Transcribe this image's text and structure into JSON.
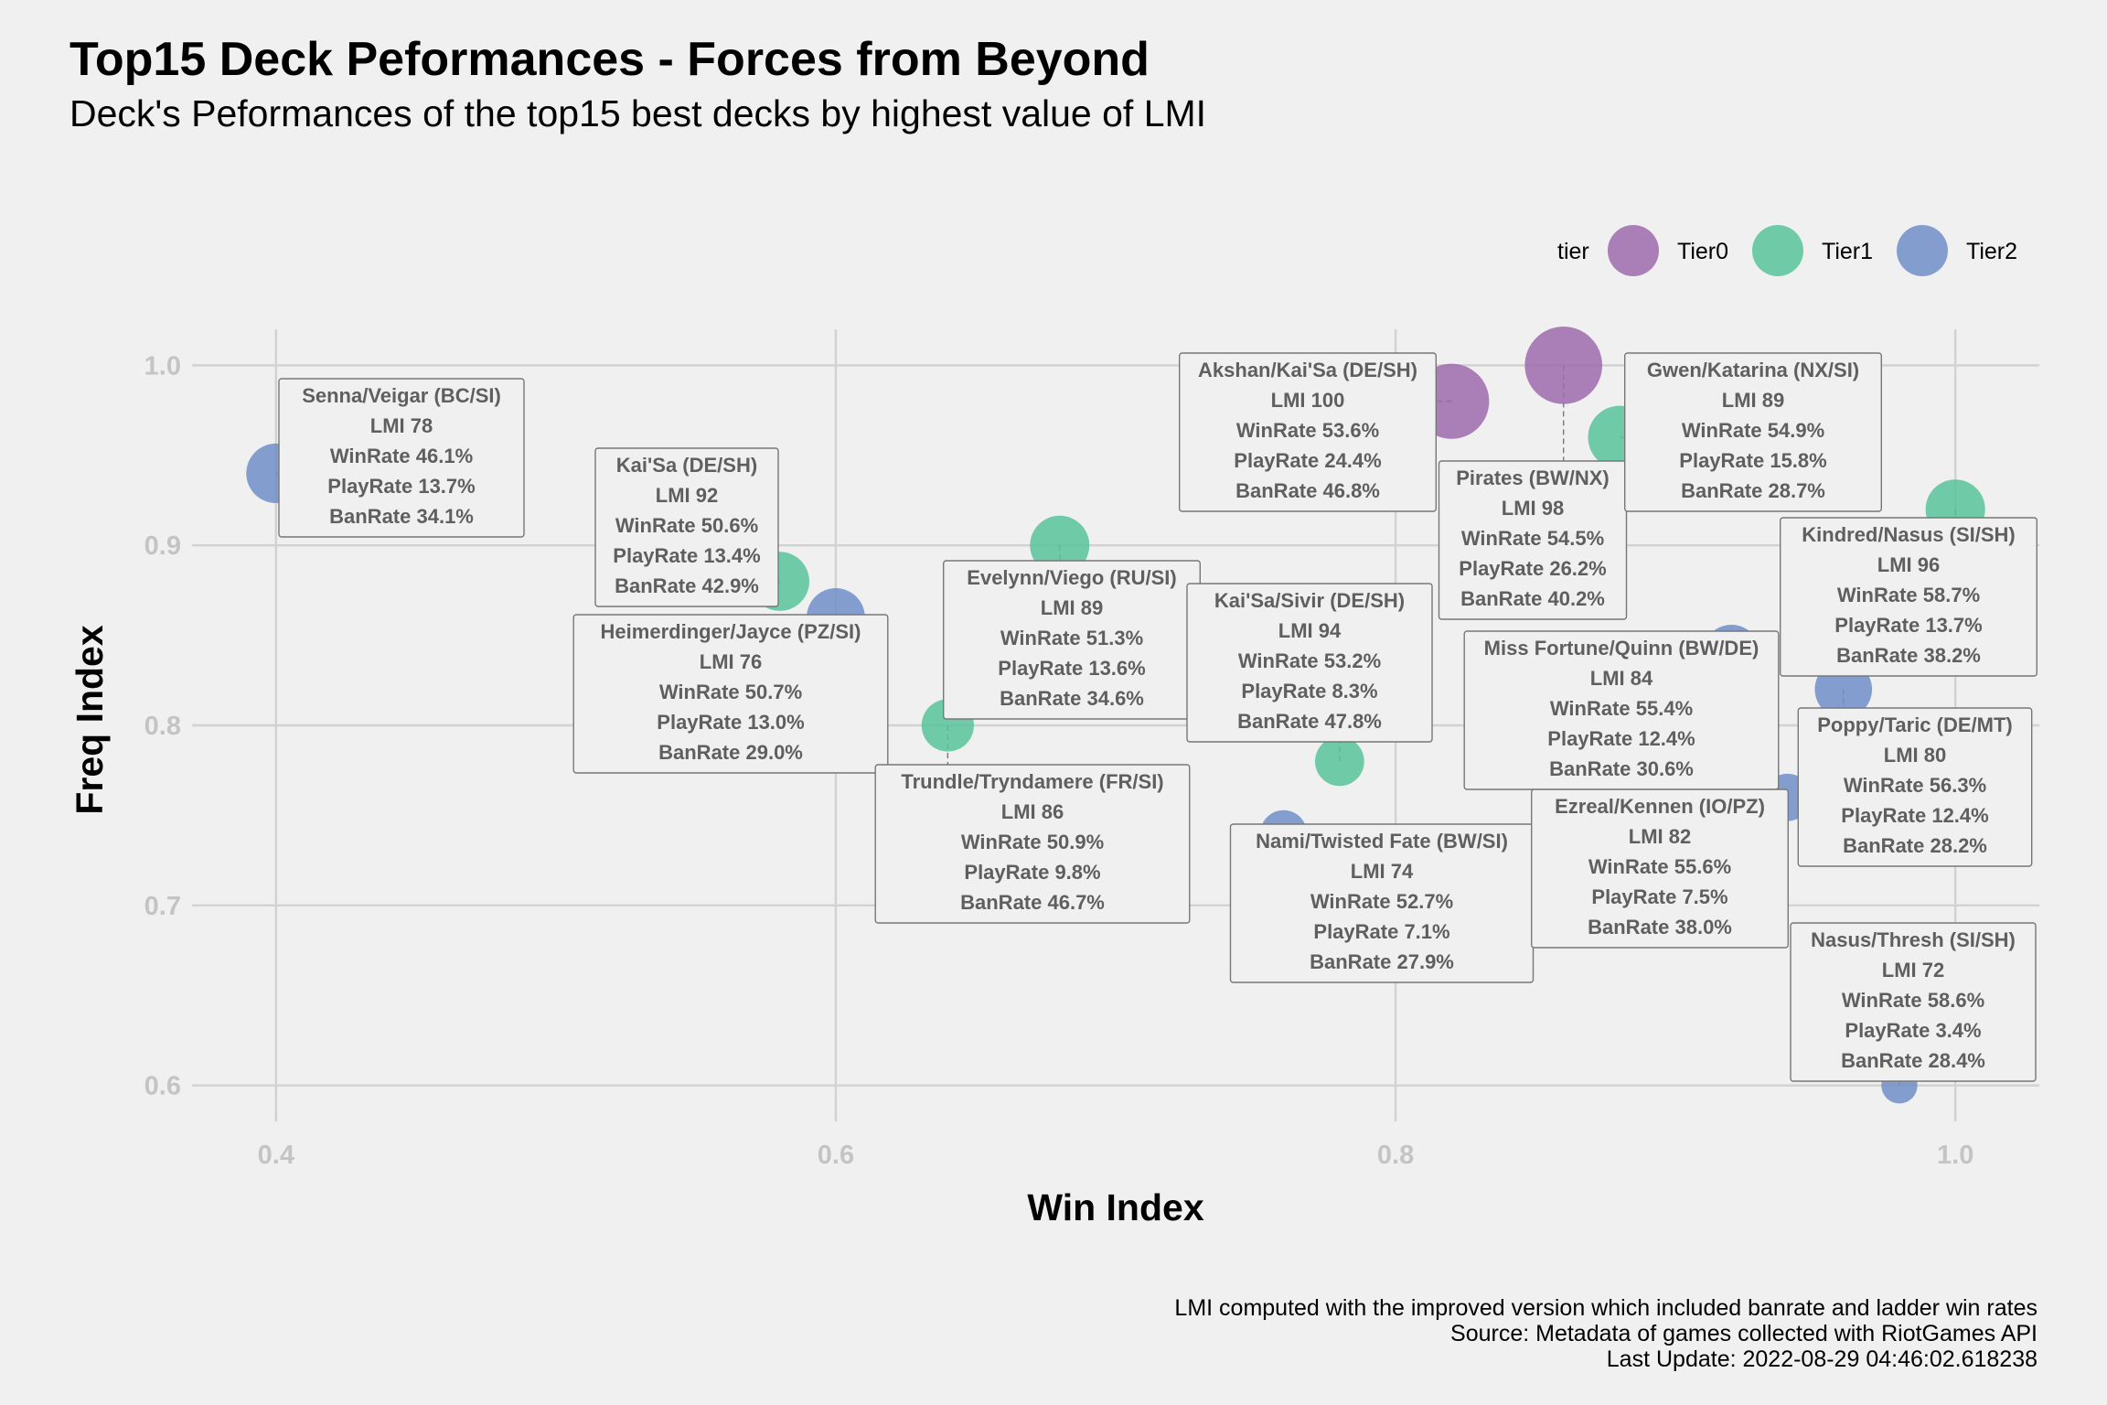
{
  "chart_data": {
    "type": "scatter",
    "title": "Top15 Deck Peformances - Forces from Beyond",
    "subtitle": "Deck's Peformances of the top15 best decks by highest value of LMI",
    "xlabel": "Win Index",
    "ylabel": "Freq Index",
    "xlim": [
      0.37,
      1.03
    ],
    "ylim": [
      0.58,
      1.02
    ],
    "x_ticks": [
      0.4,
      0.6,
      0.8,
      1.0
    ],
    "x_tick_labels": [
      "0.4",
      "0.6",
      "0.8",
      "1.0"
    ],
    "y_ticks": [
      0.6,
      0.7,
      0.8,
      0.9,
      1.0
    ],
    "y_tick_labels": [
      "0.6",
      "0.7",
      "0.8",
      "0.9",
      "1.0"
    ],
    "grid": true,
    "legend": {
      "title": "tier",
      "position": "top-right",
      "entries": [
        {
          "label": "Tier0",
          "color": "#9e6aab"
        },
        {
          "label": "Tier1",
          "color": "#58c49a"
        },
        {
          "label": "Tier2",
          "color": "#6e8ec8"
        }
      ]
    },
    "caption": [
      "LMI computed with the improved version which included banrate and ladder win rates",
      "Source: Metadata of games collected with RiotGames API",
      "Last Update: 2022-08-29 04:46:02.618238"
    ],
    "points": [
      {
        "deck": "Senna/Veigar (BC/SI)",
        "tier": "Tier2",
        "x": 0.4,
        "y": 0.94,
        "lmi": "LMI 78",
        "winrate": "WinRate 46.1%",
        "playrate": "PlayRate 13.7%",
        "banrate": "BanRate 34.1%",
        "size": 13.7
      },
      {
        "deck": "Kai'Sa (DE/SH)",
        "tier": "Tier1",
        "x": 0.58,
        "y": 0.88,
        "lmi": "LMI 92",
        "winrate": "WinRate 50.6%",
        "playrate": "PlayRate 13.4%",
        "banrate": "BanRate 42.9%",
        "size": 13.4
      },
      {
        "deck": "Heimerdinger/Jayce (PZ/SI)",
        "tier": "Tier2",
        "x": 0.6,
        "y": 0.86,
        "lmi": "LMI 76",
        "winrate": "WinRate 50.7%",
        "playrate": "PlayRate 13.0%",
        "banrate": "BanRate 29.0%",
        "size": 13.0
      },
      {
        "deck": "Trundle/Tryndamere (FR/SI)",
        "tier": "Tier1",
        "x": 0.64,
        "y": 0.8,
        "lmi": "LMI 86",
        "winrate": "WinRate 50.9%",
        "playrate": "PlayRate 9.8%",
        "banrate": "BanRate 46.7%",
        "size": 9.8
      },
      {
        "deck": "Evelynn/Viego (RU/SI)",
        "tier": "Tier1",
        "x": 0.68,
        "y": 0.9,
        "lmi": "LMI 89",
        "winrate": "WinRate 51.3%",
        "playrate": "PlayRate 13.6%",
        "banrate": "BanRate 34.6%",
        "size": 13.6
      },
      {
        "deck": "Nami/Twisted Fate (BW/SI)",
        "tier": "Tier2",
        "x": 0.76,
        "y": 0.74,
        "lmi": "LMI 74",
        "winrate": "WinRate 52.7%",
        "playrate": "PlayRate 7.1%",
        "banrate": "BanRate 27.9%",
        "size": 7.1
      },
      {
        "deck": "Kai'Sa/Sivir (DE/SH)",
        "tier": "Tier1",
        "x": 0.78,
        "y": 0.78,
        "lmi": "LMI 94",
        "winrate": "WinRate 53.2%",
        "playrate": "PlayRate 8.3%",
        "banrate": "BanRate 47.8%",
        "size": 8.3
      },
      {
        "deck": "Akshan/Kai'Sa (DE/SH)",
        "tier": "Tier0",
        "x": 0.82,
        "y": 0.98,
        "lmi": "LMI 100",
        "winrate": "WinRate 53.6%",
        "playrate": "PlayRate 24.4%",
        "banrate": "BanRate 46.8%",
        "size": 24.4
      },
      {
        "deck": "Pirates (BW/NX)",
        "tier": "Tier0",
        "x": 0.86,
        "y": 1.0,
        "lmi": "LMI 98",
        "winrate": "WinRate 54.5%",
        "playrate": "PlayRate 26.2%",
        "banrate": "BanRate 40.2%",
        "size": 26.2
      },
      {
        "deck": "Gwen/Katarina (NX/SI)",
        "tier": "Tier1",
        "x": 0.88,
        "y": 0.96,
        "lmi": "LMI 89",
        "winrate": "WinRate 54.9%",
        "playrate": "PlayRate 15.8%",
        "banrate": "BanRate 28.7%",
        "size": 15.8
      },
      {
        "deck": "Miss Fortune/Quinn (BW/DE)",
        "tier": "Tier2",
        "x": 0.92,
        "y": 0.84,
        "lmi": "LMI 84",
        "winrate": "WinRate 55.4%",
        "playrate": "PlayRate 12.4%",
        "banrate": "BanRate 30.6%",
        "size": 12.4
      },
      {
        "deck": "Ezreal/Kennen (IO/PZ)",
        "tier": "Tier2",
        "x": 0.94,
        "y": 0.76,
        "lmi": "LMI 82",
        "winrate": "WinRate 55.6%",
        "playrate": "PlayRate 7.5%",
        "banrate": "BanRate 38.0%",
        "size": 7.5
      },
      {
        "deck": "Poppy/Taric (DE/MT)",
        "tier": "Tier2",
        "x": 0.96,
        "y": 0.82,
        "lmi": "LMI 80",
        "winrate": "WinRate 56.3%",
        "playrate": "PlayRate 12.4%",
        "banrate": "BanRate 28.2%",
        "size": 12.4
      },
      {
        "deck": "Nasus/Thresh (SI/SH)",
        "tier": "Tier2",
        "x": 0.98,
        "y": 0.6,
        "lmi": "LMI 72",
        "winrate": "WinRate 58.6%",
        "playrate": "PlayRate 3.4%",
        "banrate": "BanRate 28.4%",
        "size": 3.4
      },
      {
        "deck": "Kindred/Nasus (SI/SH)",
        "tier": "Tier1",
        "x": 1.0,
        "y": 0.92,
        "lmi": "LMI 96",
        "winrate": "WinRate 58.7%",
        "playrate": "PlayRate 13.7%",
        "banrate": "BanRate 38.2%",
        "size": 13.7
      }
    ]
  }
}
